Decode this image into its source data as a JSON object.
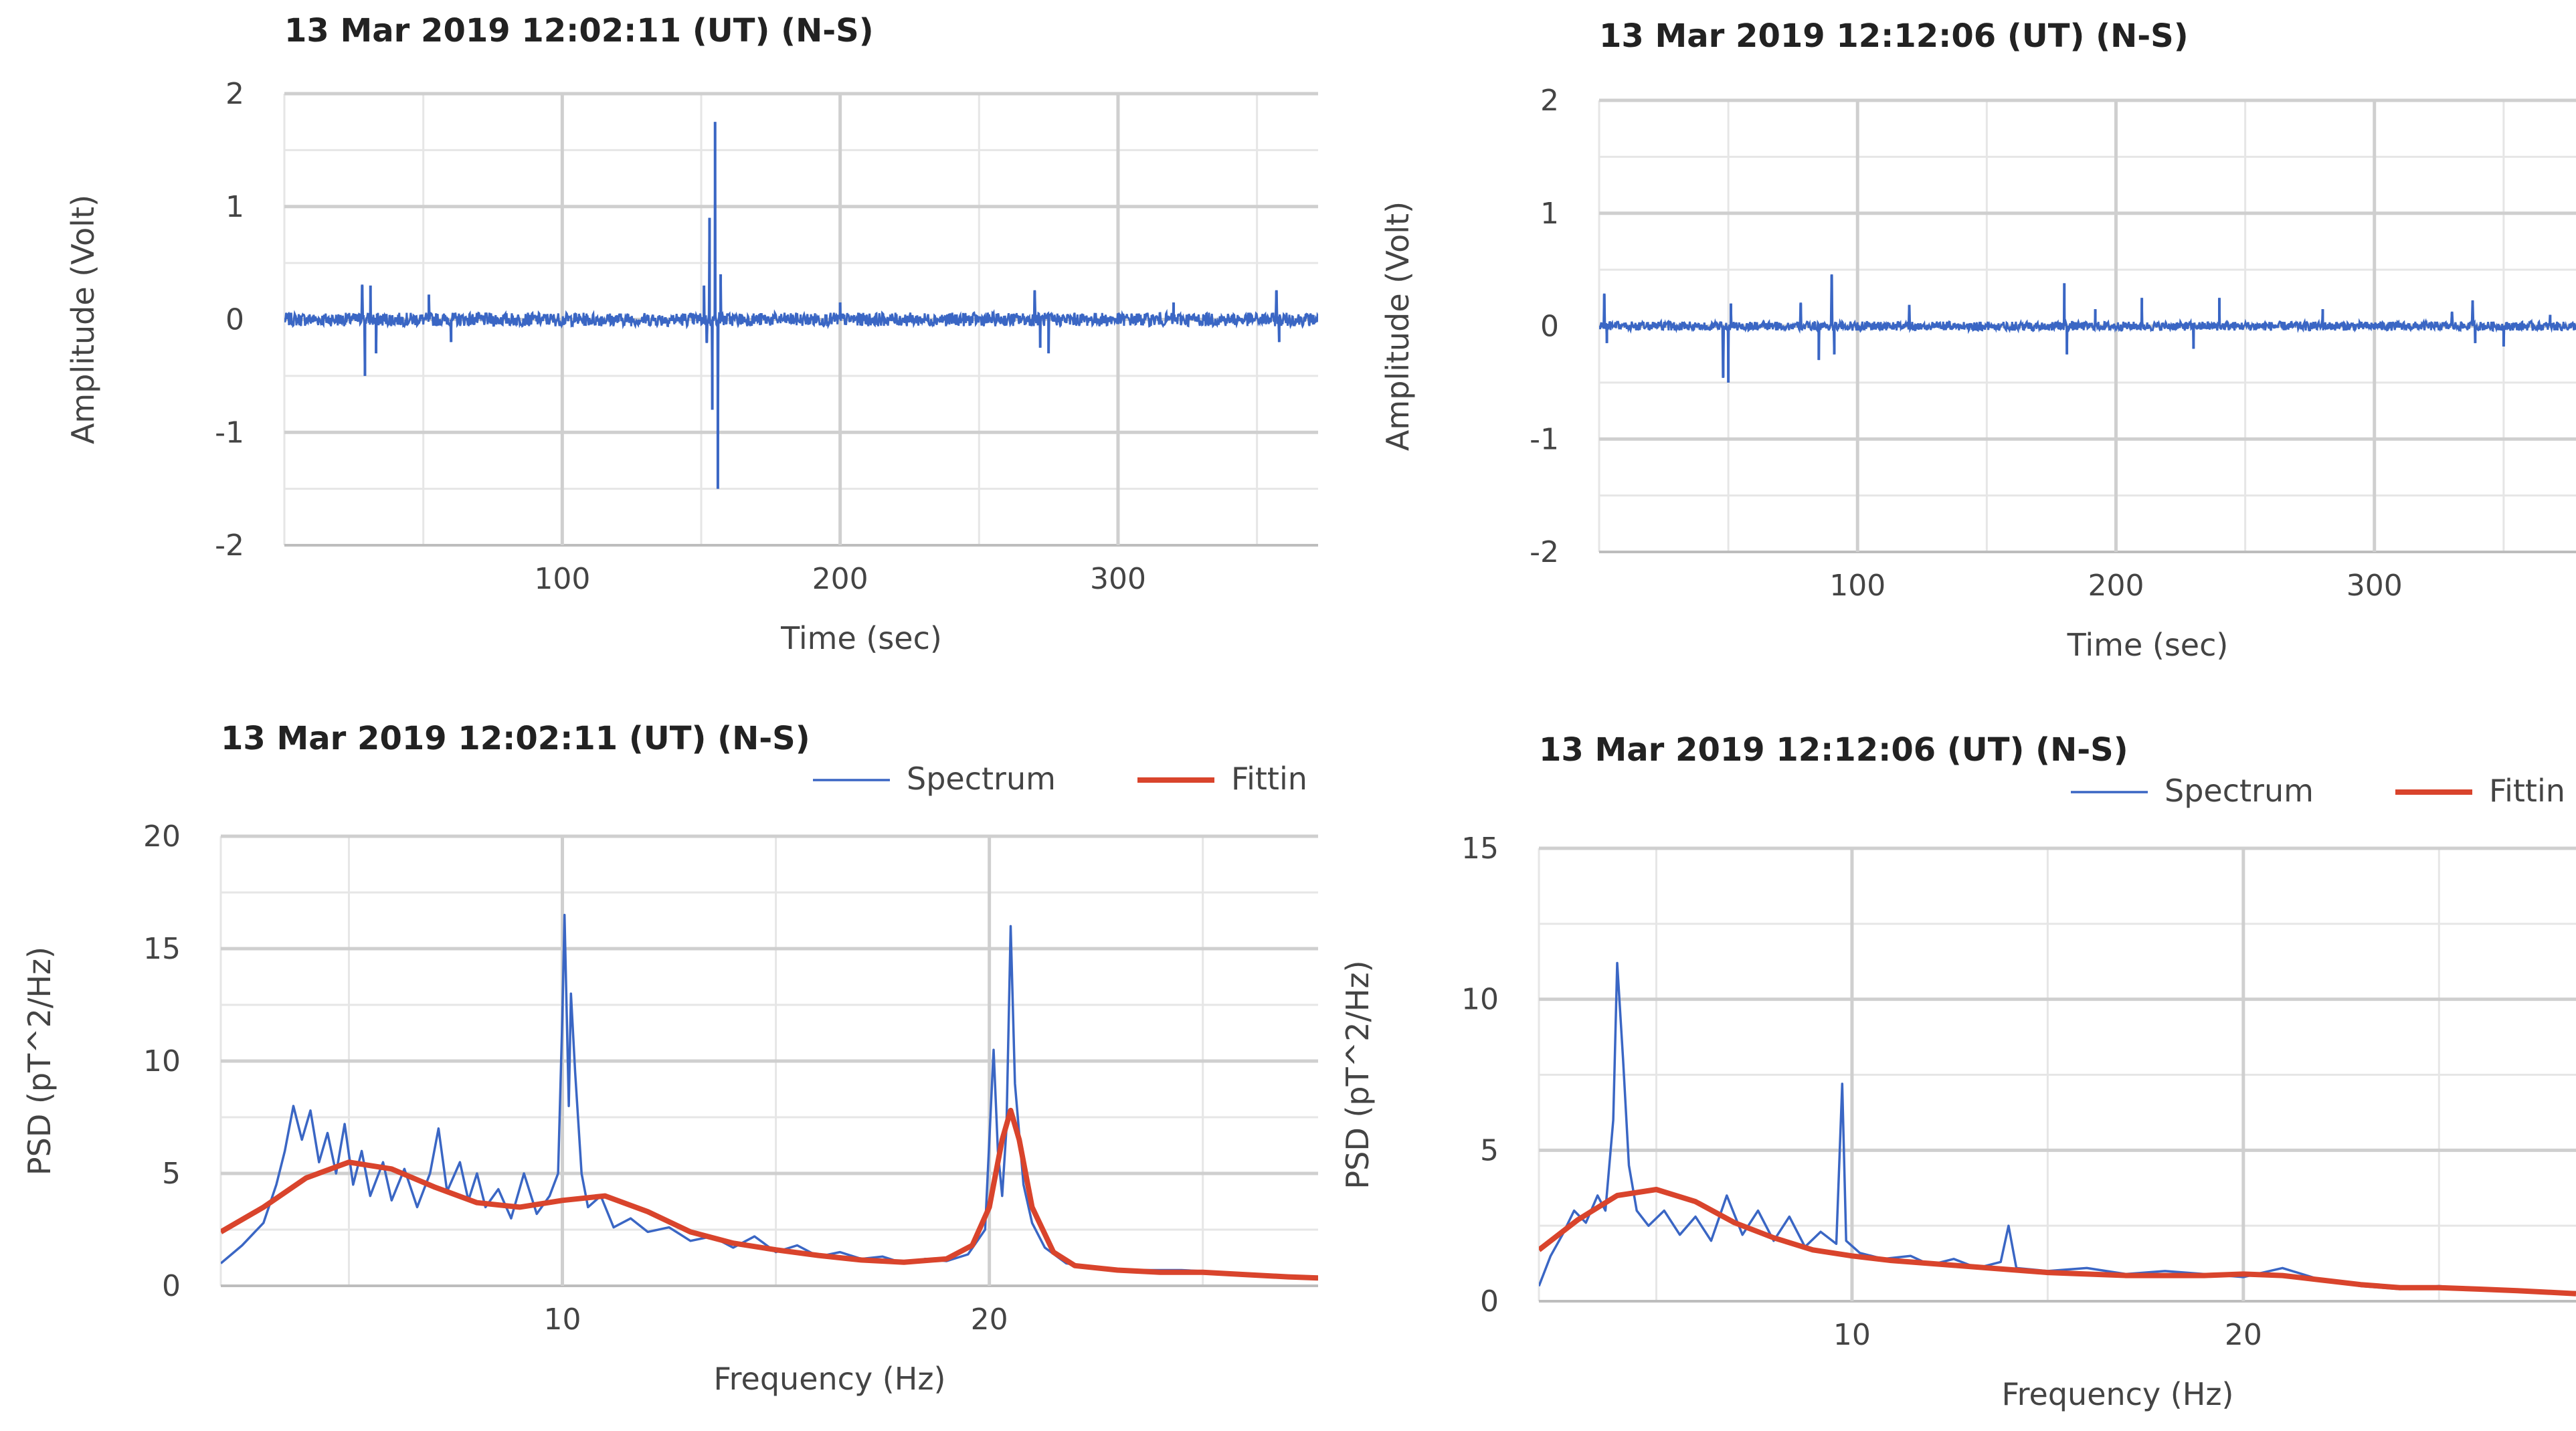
{
  "chart_data": [
    {
      "type": "line",
      "title": "13 Mar 2019  12:02:11 (UT) (N-S)",
      "xlabel": "Time (sec)",
      "ylabel": "Amplitude (Volt)",
      "xlim": [
        0,
        372
      ],
      "ylim": [
        -2,
        2
      ],
      "xticks": [
        100,
        200,
        300
      ],
      "yticks": [
        -2,
        -1,
        0,
        1,
        2
      ],
      "x_minor_step": 50,
      "y_minor_step": 0.5,
      "grid": true,
      "legend": null,
      "series": [
        {
          "color": "#3a66c4",
          "noise_amplitude": 0.06,
          "spikes": [
            {
              "x": 28,
              "y": 0.3
            },
            {
              "x": 29,
              "y": -0.5
            },
            {
              "x": 31,
              "y": 0.3
            },
            {
              "x": 33,
              "y": -0.3
            },
            {
              "x": 52,
              "y": 0.22
            },
            {
              "x": 60,
              "y": -0.2
            },
            {
              "x": 151,
              "y": 0.3
            },
            {
              "x": 152,
              "y": -0.2
            },
            {
              "x": 153,
              "y": 0.9
            },
            {
              "x": 154,
              "y": -0.8
            },
            {
              "x": 155,
              "y": 1.75
            },
            {
              "x": 156,
              "y": -1.5
            },
            {
              "x": 157,
              "y": 0.4
            },
            {
              "x": 200,
              "y": 0.15
            },
            {
              "x": 270,
              "y": 0.25
            },
            {
              "x": 272,
              "y": -0.25
            },
            {
              "x": 275,
              "y": -0.3
            },
            {
              "x": 320,
              "y": 0.15
            },
            {
              "x": 357,
              "y": 0.25
            },
            {
              "x": 358,
              "y": -0.2
            }
          ]
        }
      ]
    },
    {
      "type": "line",
      "title": "13 Mar 2019  12:12:06 (UT) (N-S)",
      "xlabel": "Time (sec)",
      "ylabel": "Amplitude (Volt)",
      "xlim": [
        0,
        378
      ],
      "ylim": [
        -2,
        2
      ],
      "xticks": [
        100,
        200,
        300
      ],
      "yticks": [
        -2,
        -1,
        0,
        1,
        2
      ],
      "x_minor_step": 50,
      "y_minor_step": 0.5,
      "grid": true,
      "legend": null,
      "series": [
        {
          "color": "#3a66c4",
          "noise_amplitude": 0.04,
          "spikes": [
            {
              "x": 2,
              "y": 0.28
            },
            {
              "x": 3,
              "y": -0.15
            },
            {
              "x": 48,
              "y": -0.45
            },
            {
              "x": 50,
              "y": -0.5
            },
            {
              "x": 51,
              "y": 0.2
            },
            {
              "x": 78,
              "y": 0.2
            },
            {
              "x": 85,
              "y": -0.3
            },
            {
              "x": 90,
              "y": 0.45
            },
            {
              "x": 91,
              "y": -0.25
            },
            {
              "x": 120,
              "y": 0.18
            },
            {
              "x": 180,
              "y": 0.38
            },
            {
              "x": 181,
              "y": -0.25
            },
            {
              "x": 192,
              "y": 0.15
            },
            {
              "x": 210,
              "y": 0.25
            },
            {
              "x": 230,
              "y": -0.2
            },
            {
              "x": 240,
              "y": 0.25
            },
            {
              "x": 280,
              "y": 0.15
            },
            {
              "x": 330,
              "y": 0.12
            },
            {
              "x": 338,
              "y": 0.22
            },
            {
              "x": 339,
              "y": -0.15
            },
            {
              "x": 350,
              "y": -0.18
            },
            {
              "x": 368,
              "y": 0.1
            }
          ]
        }
      ]
    },
    {
      "type": "line",
      "title": "13 Mar 2019  12:02:11 (UT) (N-S)",
      "xlabel": "Frequency (Hz)",
      "ylabel": "PSD (pT^2/Hz)",
      "xlim": [
        2,
        27.7
      ],
      "ylim": [
        0,
        20
      ],
      "xticks": [
        10,
        20
      ],
      "yticks": [
        0,
        5,
        10,
        15,
        20
      ],
      "x_minor_step": 5,
      "y_minor_step": 2.5,
      "grid": true,
      "legend": {
        "position": "top-right",
        "entries": [
          "Spectrum",
          "Fittin"
        ]
      },
      "series": [
        {
          "name": "Spectrum",
          "color": "#3a66c4",
          "points": [
            [
              2.0,
              1.0
            ],
            [
              2.5,
              1.8
            ],
            [
              3.0,
              2.8
            ],
            [
              3.3,
              4.5
            ],
            [
              3.5,
              6.0
            ],
            [
              3.7,
              8.0
            ],
            [
              3.9,
              6.5
            ],
            [
              4.1,
              7.8
            ],
            [
              4.3,
              5.5
            ],
            [
              4.5,
              6.8
            ],
            [
              4.7,
              5.0
            ],
            [
              4.9,
              7.2
            ],
            [
              5.1,
              4.5
            ],
            [
              5.3,
              6.0
            ],
            [
              5.5,
              4.0
            ],
            [
              5.8,
              5.5
            ],
            [
              6.0,
              3.8
            ],
            [
              6.3,
              5.2
            ],
            [
              6.6,
              3.5
            ],
            [
              6.9,
              5.0
            ],
            [
              7.1,
              7.0
            ],
            [
              7.3,
              4.2
            ],
            [
              7.6,
              5.5
            ],
            [
              7.8,
              3.8
            ],
            [
              8.0,
              5.0
            ],
            [
              8.2,
              3.5
            ],
            [
              8.5,
              4.3
            ],
            [
              8.8,
              3.0
            ],
            [
              9.1,
              5.0
            ],
            [
              9.4,
              3.2
            ],
            [
              9.7,
              4.0
            ],
            [
              9.9,
              5.0
            ],
            [
              10.0,
              12.0
            ],
            [
              10.05,
              16.5
            ],
            [
              10.15,
              8.0
            ],
            [
              10.2,
              13.0
            ],
            [
              10.3,
              9.5
            ],
            [
              10.45,
              5.0
            ],
            [
              10.6,
              3.5
            ],
            [
              10.9,
              4.0
            ],
            [
              11.2,
              2.6
            ],
            [
              11.6,
              3.0
            ],
            [
              12.0,
              2.4
            ],
            [
              12.5,
              2.6
            ],
            [
              13.0,
              2.0
            ],
            [
              13.5,
              2.2
            ],
            [
              14.0,
              1.7
            ],
            [
              14.5,
              2.2
            ],
            [
              15.0,
              1.5
            ],
            [
              15.5,
              1.8
            ],
            [
              16.0,
              1.3
            ],
            [
              16.5,
              1.5
            ],
            [
              17.0,
              1.2
            ],
            [
              17.5,
              1.3
            ],
            [
              18.0,
              1.0
            ],
            [
              18.5,
              1.2
            ],
            [
              19.0,
              1.1
            ],
            [
              19.5,
              1.4
            ],
            [
              19.9,
              2.5
            ],
            [
              20.1,
              10.5
            ],
            [
              20.2,
              6.0
            ],
            [
              20.3,
              4.0
            ],
            [
              20.4,
              7.0
            ],
            [
              20.5,
              16.0
            ],
            [
              20.6,
              9.0
            ],
            [
              20.8,
              4.5
            ],
            [
              21.0,
              2.8
            ],
            [
              21.3,
              1.7
            ],
            [
              21.8,
              1.0
            ],
            [
              22.5,
              0.8
            ],
            [
              23.5,
              0.7
            ],
            [
              24.5,
              0.7
            ],
            [
              25.5,
              0.6
            ],
            [
              26.5,
              0.5
            ],
            [
              27.7,
              0.3
            ]
          ]
        },
        {
          "name": "Fittin",
          "color": "#d9442c",
          "points": [
            [
              2.0,
              2.4
            ],
            [
              3.0,
              3.5
            ],
            [
              4.0,
              4.8
            ],
            [
              5.0,
              5.5
            ],
            [
              6.0,
              5.2
            ],
            [
              7.0,
              4.4
            ],
            [
              8.0,
              3.7
            ],
            [
              9.0,
              3.5
            ],
            [
              10.0,
              3.8
            ],
            [
              11.0,
              4.0
            ],
            [
              12.0,
              3.3
            ],
            [
              13.0,
              2.4
            ],
            [
              14.0,
              1.9
            ],
            [
              15.0,
              1.6
            ],
            [
              16.0,
              1.35
            ],
            [
              17.0,
              1.15
            ],
            [
              18.0,
              1.05
            ],
            [
              19.0,
              1.2
            ],
            [
              19.6,
              1.8
            ],
            [
              20.0,
              3.5
            ],
            [
              20.3,
              6.5
            ],
            [
              20.5,
              7.8
            ],
            [
              20.7,
              6.5
            ],
            [
              21.0,
              3.5
            ],
            [
              21.5,
              1.5
            ],
            [
              22.0,
              0.9
            ],
            [
              23.0,
              0.7
            ],
            [
              24.0,
              0.6
            ],
            [
              25.0,
              0.6
            ],
            [
              26.0,
              0.5
            ],
            [
              27.0,
              0.4
            ],
            [
              27.7,
              0.35
            ]
          ]
        }
      ]
    },
    {
      "type": "line",
      "title": "13 Mar 2019  12:12:06 (UT) (N-S)",
      "xlabel": "Frequency (Hz)",
      "ylabel": "PSD (pT^2/Hz)",
      "xlim": [
        2,
        28.5
      ],
      "ylim": [
        0,
        15
      ],
      "xticks": [
        10,
        20
      ],
      "yticks": [
        0,
        5,
        10,
        15
      ],
      "x_minor_step": 5,
      "y_minor_step": 2.5,
      "grid": true,
      "legend": {
        "position": "top-right",
        "entries": [
          "Spectrum",
          "Fittin"
        ]
      },
      "series": [
        {
          "name": "Spectrum",
          "color": "#3a66c4",
          "points": [
            [
              2.0,
              0.5
            ],
            [
              2.3,
              1.5
            ],
            [
              2.6,
              2.2
            ],
            [
              2.9,
              3.0
            ],
            [
              3.2,
              2.6
            ],
            [
              3.5,
              3.5
            ],
            [
              3.7,
              3.0
            ],
            [
              3.9,
              6.0
            ],
            [
              4.0,
              11.2
            ],
            [
              4.15,
              8.0
            ],
            [
              4.3,
              4.5
            ],
            [
              4.5,
              3.0
            ],
            [
              4.8,
              2.5
            ],
            [
              5.2,
              3.0
            ],
            [
              5.6,
              2.2
            ],
            [
              6.0,
              2.8
            ],
            [
              6.4,
              2.0
            ],
            [
              6.8,
              3.5
            ],
            [
              7.2,
              2.2
            ],
            [
              7.6,
              3.0
            ],
            [
              8.0,
              2.0
            ],
            [
              8.4,
              2.8
            ],
            [
              8.8,
              1.8
            ],
            [
              9.2,
              2.3
            ],
            [
              9.6,
              1.9
            ],
            [
              9.75,
              7.2
            ],
            [
              9.85,
              2.0
            ],
            [
              10.2,
              1.6
            ],
            [
              10.8,
              1.4
            ],
            [
              11.5,
              1.5
            ],
            [
              12.0,
              1.2
            ],
            [
              12.6,
              1.4
            ],
            [
              13.2,
              1.1
            ],
            [
              13.8,
              1.3
            ],
            [
              14.0,
              2.5
            ],
            [
              14.2,
              1.1
            ],
            [
              15.0,
              1.0
            ],
            [
              16.0,
              1.1
            ],
            [
              17.0,
              0.9
            ],
            [
              18.0,
              1.0
            ],
            [
              19.0,
              0.9
            ],
            [
              20.0,
              0.8
            ],
            [
              21.0,
              1.1
            ],
            [
              22.0,
              0.7
            ],
            [
              23.0,
              0.5
            ],
            [
              24.0,
              0.4
            ],
            [
              25.0,
              0.5
            ],
            [
              26.0,
              0.4
            ],
            [
              27.0,
              0.35
            ],
            [
              28.5,
              0.3
            ]
          ]
        },
        {
          "name": "Fittin",
          "color": "#d9442c",
          "points": [
            [
              2.0,
              1.7
            ],
            [
              3.0,
              2.7
            ],
            [
              4.0,
              3.5
            ],
            [
              5.0,
              3.7
            ],
            [
              6.0,
              3.3
            ],
            [
              7.0,
              2.6
            ],
            [
              8.0,
              2.1
            ],
            [
              9.0,
              1.7
            ],
            [
              10.0,
              1.5
            ],
            [
              11.0,
              1.35
            ],
            [
              12.0,
              1.25
            ],
            [
              13.0,
              1.15
            ],
            [
              14.0,
              1.05
            ],
            [
              15.0,
              0.95
            ],
            [
              16.0,
              0.9
            ],
            [
              17.0,
              0.85
            ],
            [
              18.0,
              0.85
            ],
            [
              19.0,
              0.85
            ],
            [
              20.0,
              0.9
            ],
            [
              21.0,
              0.85
            ],
            [
              22.0,
              0.7
            ],
            [
              23.0,
              0.55
            ],
            [
              24.0,
              0.45
            ],
            [
              25.0,
              0.45
            ],
            [
              26.0,
              0.4
            ],
            [
              27.0,
              0.35
            ],
            [
              28.5,
              0.25
            ]
          ]
        }
      ]
    }
  ]
}
